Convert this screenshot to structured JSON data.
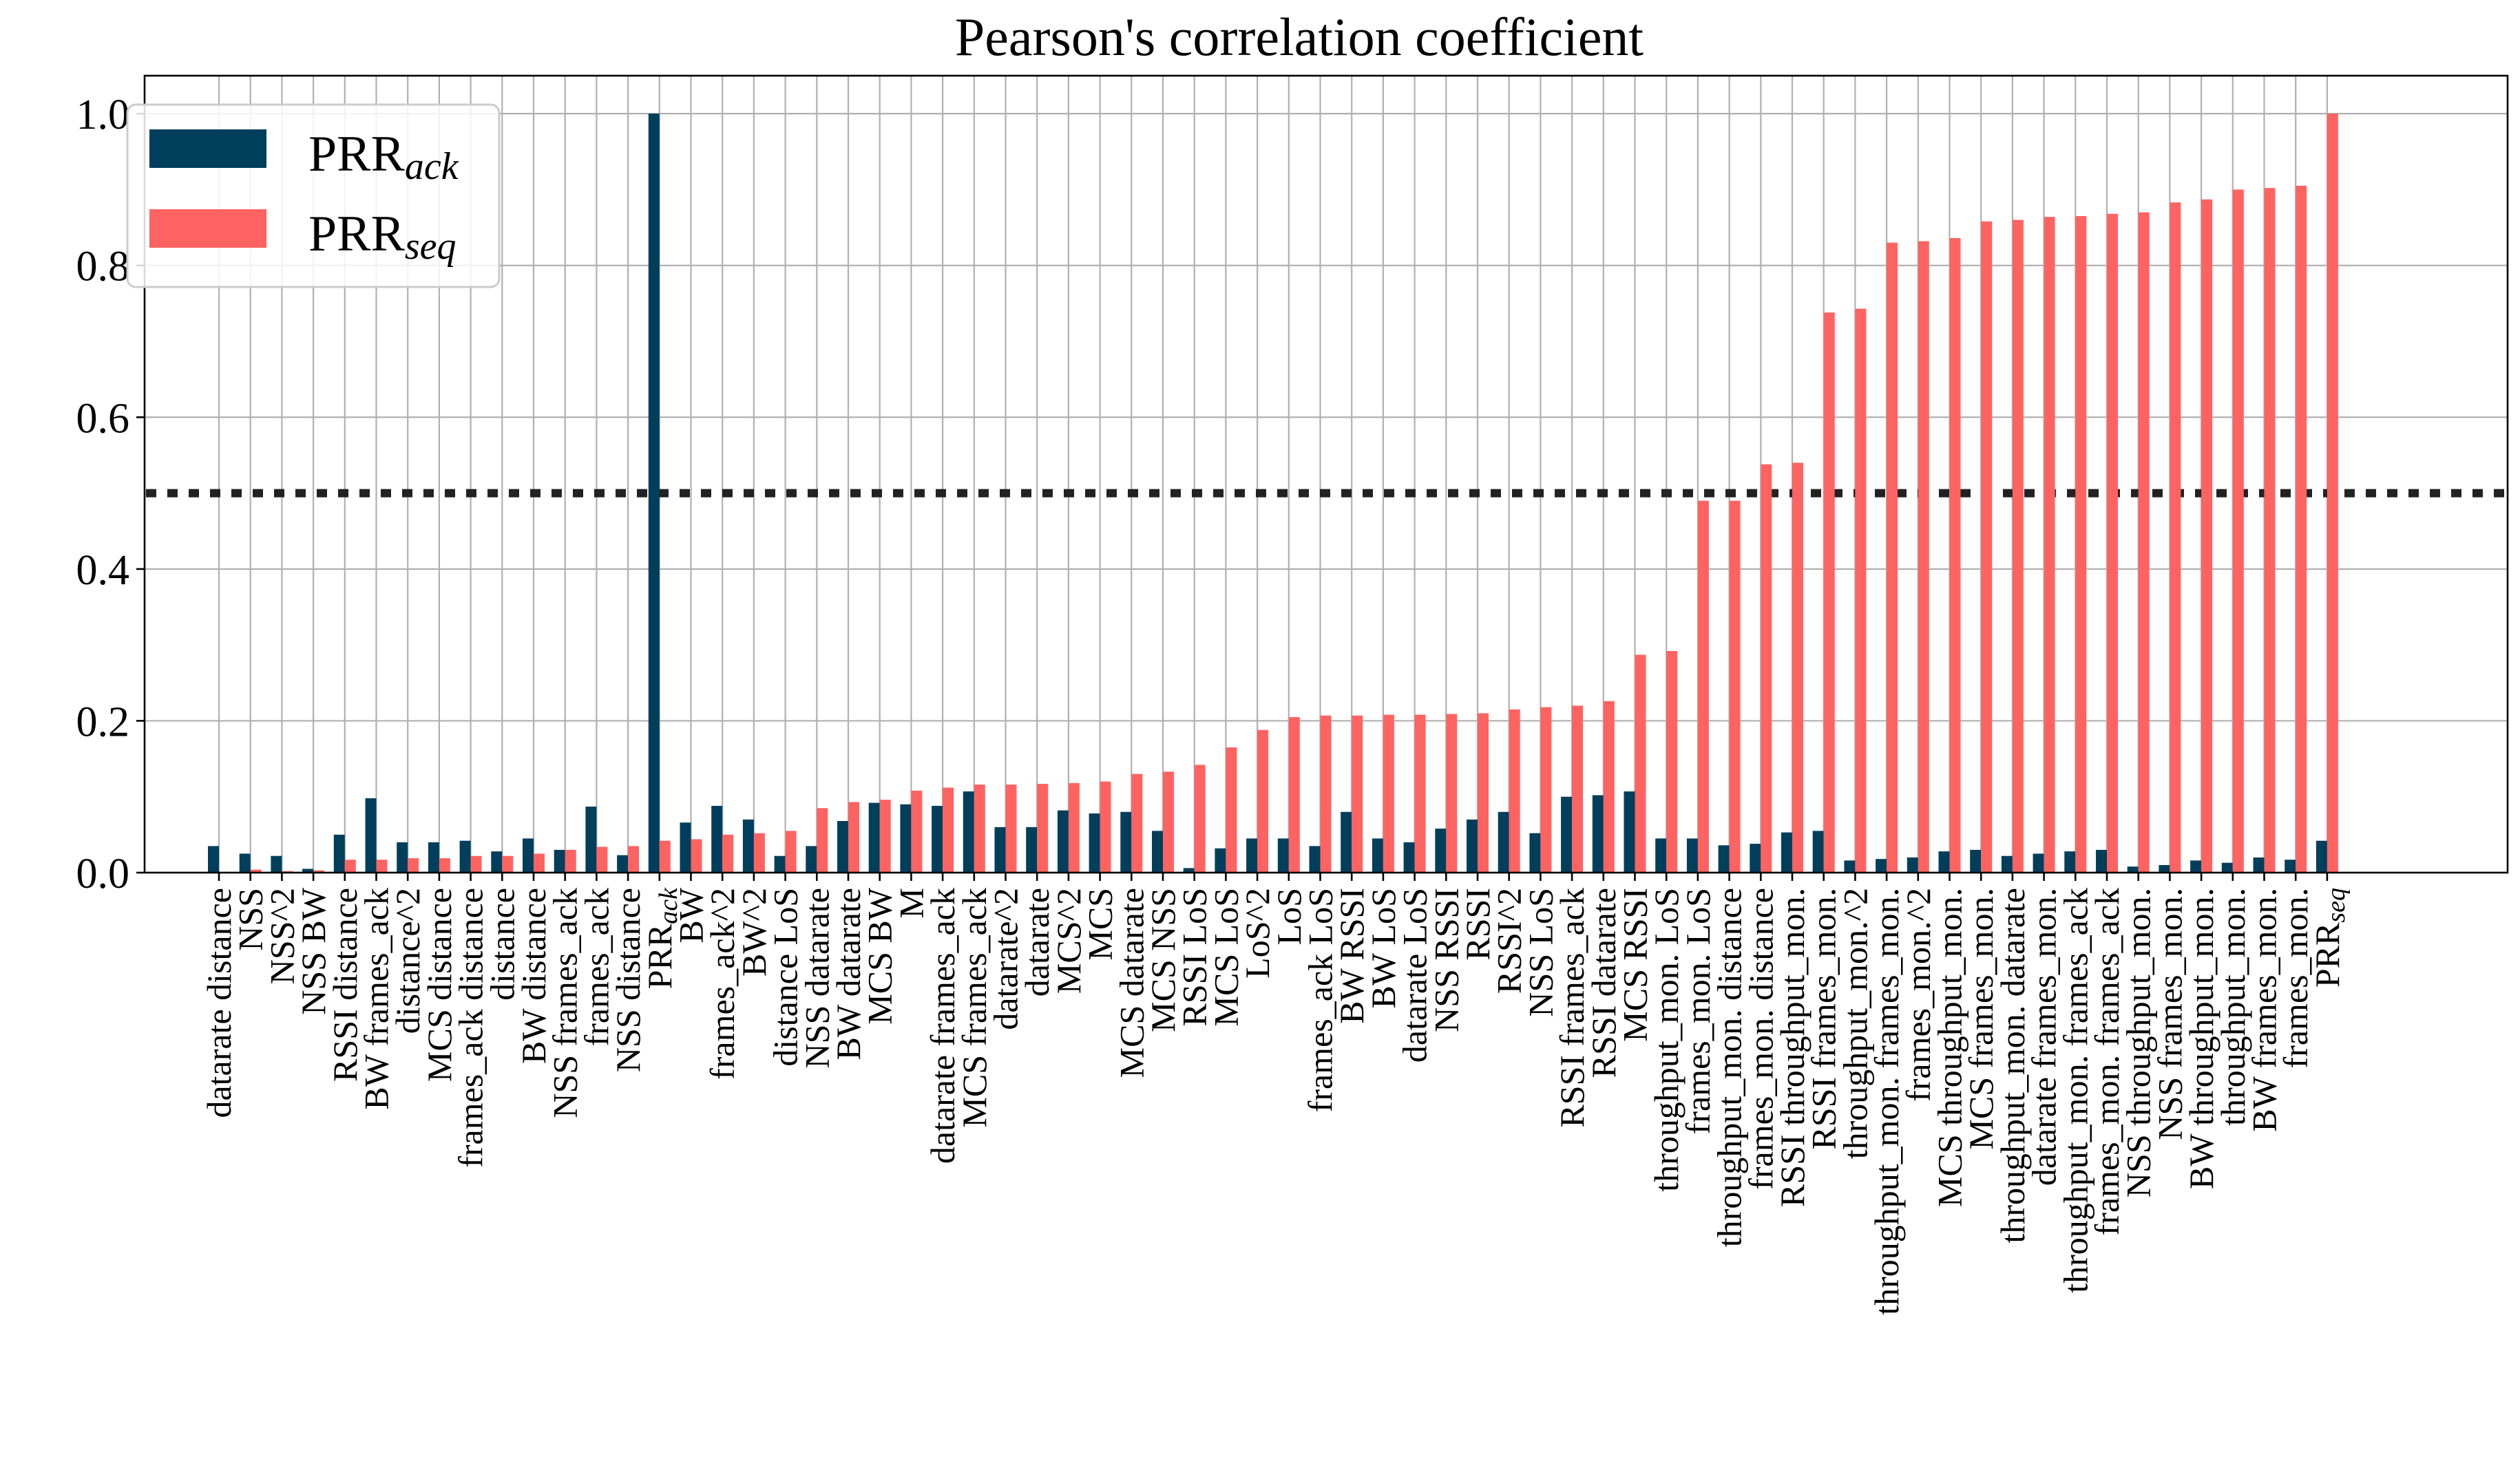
{
  "chart_data": {
    "type": "bar",
    "title": "Pearson's correlation coefficient",
    "xlabel": "",
    "ylabel": "",
    "ylim": [
      0,
      1.05
    ],
    "yticks": [
      "0.0",
      "0.2",
      "0.4",
      "0.6",
      "0.8",
      "1.0"
    ],
    "grid": true,
    "legend_position": "upper-left",
    "reference_line": {
      "y": 0.5,
      "style": "dotted",
      "color": "#222222"
    },
    "categories": [
      "datarate distance",
      "NSS",
      "NSS^2",
      "NSS BW",
      "RSSI distance",
      "BW frames_ack",
      "distance^2",
      "MCS distance",
      "frames_ack distance",
      "distance",
      "BW distance",
      "NSS frames_ack",
      "frames_ack",
      "NSS distance",
      "PRR_ack",
      "BW",
      "frames_ack^2",
      "BW^2",
      "distance LoS",
      "NSS datarate",
      "BW datarate",
      "MCS BW",
      "M",
      "datarate frames_ack",
      "MCS frames_ack",
      "datarate^2",
      "datarate",
      "MCS^2",
      "MCS",
      "MCS datarate",
      "MCS NSS",
      "RSSI LoS",
      "MCS LoS",
      "LoS^2",
      "LoS",
      "frames_ack LoS",
      "BW RSSI",
      "BW LoS",
      "datarate LoS",
      "NSS RSSI",
      "RSSI",
      "RSSI^2",
      "NSS LoS",
      "RSSI frames_ack",
      "RSSI datarate",
      "MCS RSSI",
      "throughput_mon. LoS",
      "frames_mon. LoS",
      "throughput_mon. distance",
      "frames_mon. distance",
      "RSSI throughput_mon.",
      "RSSI frames_mon.",
      "throughput_mon.^2",
      "throughput_mon. frames_mon.",
      "frames_mon.^2",
      "MCS throughput_mon.",
      "MCS frames_mon.",
      "throughput_mon. datarate",
      "datarate frames_mon.",
      "throughput_mon. frames_ack",
      "frames_mon. frames_ack",
      "NSS throughput_mon.",
      "NSS frames_mon.",
      "BW throughput_mon.",
      "throughput_mon.",
      "BW frames_mon.",
      "frames_mon.",
      "PRR_seq"
    ],
    "series": [
      {
        "name": "PRR_ack",
        "color": "#003f5c",
        "values": [
          0.035,
          0.025,
          0.022,
          0.005,
          0.05,
          0.098,
          0.04,
          0.04,
          0.042,
          0.028,
          0.045,
          0.03,
          0.087,
          0.023,
          1.0,
          0.066,
          0.088,
          0.07,
          0.022,
          0.035,
          0.068,
          0.092,
          0.09,
          0.088,
          0.107,
          0.06,
          0.06,
          0.082,
          0.078,
          0.08,
          0.055,
          0.006,
          0.032,
          0.045,
          0.045,
          0.035,
          0.08,
          0.045,
          0.04,
          0.058,
          0.07,
          0.08,
          0.052,
          0.1,
          0.102,
          0.107,
          0.045,
          0.045,
          0.036,
          0.038,
          0.053,
          0.055,
          0.016,
          0.018,
          0.02,
          0.028,
          0.03,
          0.022,
          0.025,
          0.028,
          0.03,
          0.008,
          0.01,
          0.016,
          0.013,
          0.02,
          0.017,
          0.042
        ]
      },
      {
        "name": "PRR_seq",
        "color": "#ff6361",
        "values": [
          0.0,
          0.004,
          0.002,
          0.003,
          0.017,
          0.017,
          0.019,
          0.019,
          0.022,
          0.022,
          0.025,
          0.03,
          0.034,
          0.035,
          0.042,
          0.044,
          0.05,
          0.052,
          0.055,
          0.085,
          0.093,
          0.096,
          0.108,
          0.112,
          0.116,
          0.116,
          0.117,
          0.118,
          0.12,
          0.13,
          0.133,
          0.142,
          0.165,
          0.188,
          0.205,
          0.207,
          0.207,
          0.208,
          0.208,
          0.209,
          0.21,
          0.215,
          0.218,
          0.22,
          0.226,
          0.287,
          0.292,
          0.49,
          0.49,
          0.538,
          0.54,
          0.738,
          0.743,
          0.83,
          0.832,
          0.836,
          0.858,
          0.86,
          0.864,
          0.865,
          0.868,
          0.87,
          0.883,
          0.887,
          0.9,
          0.902,
          0.905,
          1.0
        ]
      }
    ]
  }
}
